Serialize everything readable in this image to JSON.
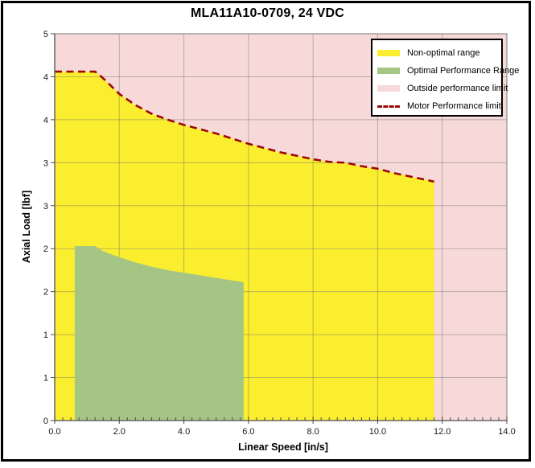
{
  "colors": {
    "nonoptimal": "#FBEE2E",
    "optimal": "#A5C584",
    "outside": "#F8D9D9",
    "limit_line": "#9C0808",
    "gridline": "#6E6E6E"
  },
  "legend": {
    "items": [
      {
        "label": "Non-optimal range",
        "swatch": "nonoptimal"
      },
      {
        "label": "Optimal Performance Range",
        "swatch": "optimal"
      },
      {
        "label": "Outside performance limit",
        "swatch": "outside"
      },
      {
        "label": "Motor Performance limit",
        "swatch": "limit_line"
      }
    ]
  },
  "chart_data": {
    "type": "area",
    "title": "MLA11A10-0709, 24 VDC",
    "xlabel": "Linear Speed [in/s]",
    "ylabel": "Axial Load [lbf]",
    "grid": "on",
    "legend_position": "top-right",
    "x_axis": {
      "min": 0,
      "max": 14,
      "major_step": 2,
      "minor_tick_step": 0.25,
      "tick_labels": [
        "0.0",
        "2.0",
        "4.0",
        "6.0",
        "8.0",
        "10.0",
        "12.0",
        "14.0"
      ]
    },
    "y_axis": {
      "min": 0,
      "max": 4.5,
      "major_step": 0.5,
      "ticks": [
        {
          "v": 4.5,
          "label": "5"
        },
        {
          "v": 4.0,
          "label": "4"
        },
        {
          "v": 3.5,
          "label": "4"
        },
        {
          "v": 3.0,
          "label": "3"
        },
        {
          "v": 2.5,
          "label": "3"
        },
        {
          "v": 2.0,
          "label": "2"
        },
        {
          "v": 1.5,
          "label": "2"
        },
        {
          "v": 1.0,
          "label": "1"
        },
        {
          "v": 0.5,
          "label": "1"
        },
        {
          "v": 0.0,
          "label": "0"
        }
      ]
    },
    "series": [
      {
        "name": "Non-optimal range",
        "type": "area",
        "color_key": "nonoptimal",
        "baseline": 0,
        "x": [
          0,
          1.25,
          1.45,
          1.7,
          2,
          2.5,
          3,
          3.5,
          4,
          4.5,
          5,
          5.5,
          6,
          6.5,
          7,
          7.5,
          8,
          8.5,
          9,
          9.5,
          10,
          10.5,
          11,
          11.5,
          11.75
        ],
        "y": [
          4.06,
          4.06,
          4.0,
          3.91,
          3.8,
          3.67,
          3.57,
          3.5,
          3.44,
          3.39,
          3.34,
          3.28,
          3.22,
          3.17,
          3.12,
          3.08,
          3.04,
          3.01,
          3.0,
          2.96,
          2.93,
          2.88,
          2.84,
          2.8,
          2.78
        ]
      },
      {
        "name": "Optimal Performance Range",
        "type": "area",
        "color_key": "optimal",
        "baseline": 0,
        "x": [
          0.62,
          1.25,
          1.5,
          2,
          2.5,
          3,
          3.5,
          4,
          4.5,
          5,
          5.5,
          5.85
        ],
        "y": [
          2.03,
          2.03,
          1.97,
          1.9,
          1.84,
          1.79,
          1.75,
          1.72,
          1.69,
          1.66,
          1.63,
          1.61
        ]
      },
      {
        "name": "Motor Performance limit",
        "type": "dashed_line",
        "color_key": "limit_line",
        "x": [
          0,
          1.25,
          1.45,
          1.7,
          2,
          2.5,
          3,
          3.5,
          4,
          4.5,
          5,
          5.5,
          6,
          6.5,
          7,
          7.5,
          8,
          8.5,
          9,
          9.5,
          10,
          10.5,
          11,
          11.5,
          11.75
        ],
        "y": [
          4.06,
          4.06,
          4.0,
          3.91,
          3.8,
          3.67,
          3.57,
          3.5,
          3.44,
          3.39,
          3.34,
          3.28,
          3.22,
          3.17,
          3.12,
          3.08,
          3.04,
          3.01,
          3.0,
          2.96,
          2.93,
          2.88,
          2.84,
          2.8,
          2.78
        ]
      },
      {
        "name": "Outside performance limit",
        "type": "background",
        "color_key": "outside"
      }
    ]
  }
}
